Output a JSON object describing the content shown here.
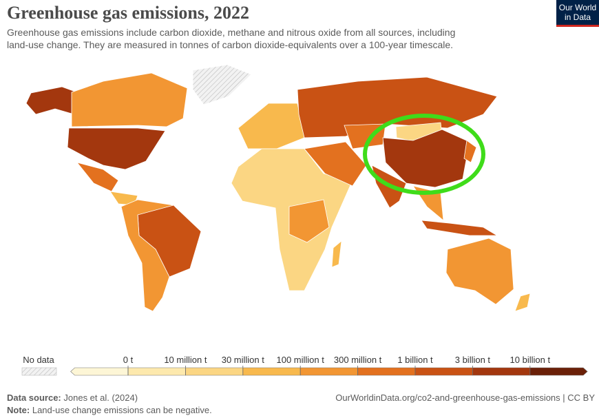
{
  "header": {
    "title": "Greenhouse gas emissions, 2022",
    "subtitle": [
      "Greenhouse gas emissions include carbon dioxide, methane and nitrous oxide from all sources, including",
      "land-use change. They are measured in tonnes of carbon dioxide-equivalents over a 100-year timescale."
    ]
  },
  "logo": [
    "Our World",
    "in Data"
  ],
  "legend": {
    "no_data": "No data",
    "ticks": [
      "0 t",
      "10 million t",
      "30 million t",
      "100 million t",
      "300 million t",
      "1 billion t",
      "3 billion t",
      "10 billion t"
    ],
    "colors": [
      "#fdf6d6",
      "#fde9ad",
      "#fbd683",
      "#f8b94d",
      "#f29633",
      "#e3711f",
      "#c95214",
      "#a3370e",
      "#6b2008"
    ]
  },
  "footer": {
    "source_label": "Data source:",
    "source": "Jones et al. (2024)",
    "url": "OurWorldinData.org/co2-and-greenhouse-gas-emissions | CC BY",
    "note_label": "Note:",
    "note": "Land-use change emissions can be negative."
  }
}
